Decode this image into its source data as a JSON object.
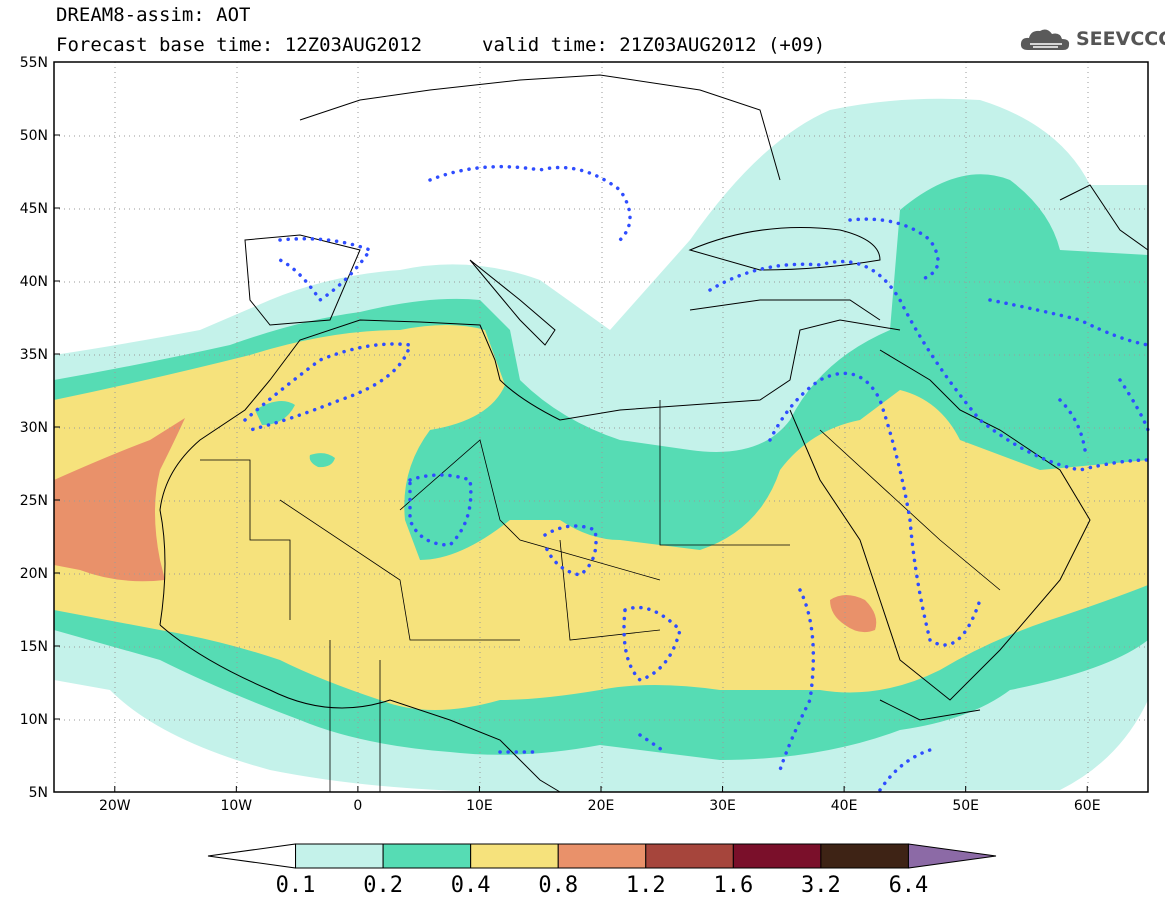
{
  "header": {
    "line1": "DREAM8-assim: AOT",
    "line2": "Forecast base time: 12Z03AUG2012",
    "valid": "valid time: 21Z03AUG2012 (+09)"
  },
  "logo": {
    "text": "SEEVCCC",
    "icon": "cloud-icon"
  },
  "map": {
    "lon_range": [
      -25,
      65
    ],
    "lat_range": [
      5,
      55
    ],
    "lat_ticks": [
      "5N",
      "10N",
      "15N",
      "20N",
      "25N",
      "30N",
      "35N",
      "40N",
      "45N",
      "50N",
      "55N"
    ],
    "lon_ticks": [
      "20W",
      "10W",
      "0",
      "10E",
      "20E",
      "30E",
      "40E",
      "50E",
      "60E"
    ],
    "grid": "dotted"
  },
  "colorbar": {
    "labels": [
      "0.1",
      "0.2",
      "0.4",
      "0.8",
      "1.2",
      "1.6",
      "3.2",
      "6.4"
    ],
    "colors": [
      "#c4f2ea",
      "#56dcb4",
      "#f6e27c",
      "#e9916a",
      "#a6453c",
      "#7a0f2a",
      "#3e2315",
      "#8c6aa6"
    ]
  },
  "colors": {
    "very_light": "#c4f2ea",
    "light": "#56dcb4",
    "medium": "#f6e27c",
    "high": "#e9916a",
    "contour": "#2f4dff"
  }
}
